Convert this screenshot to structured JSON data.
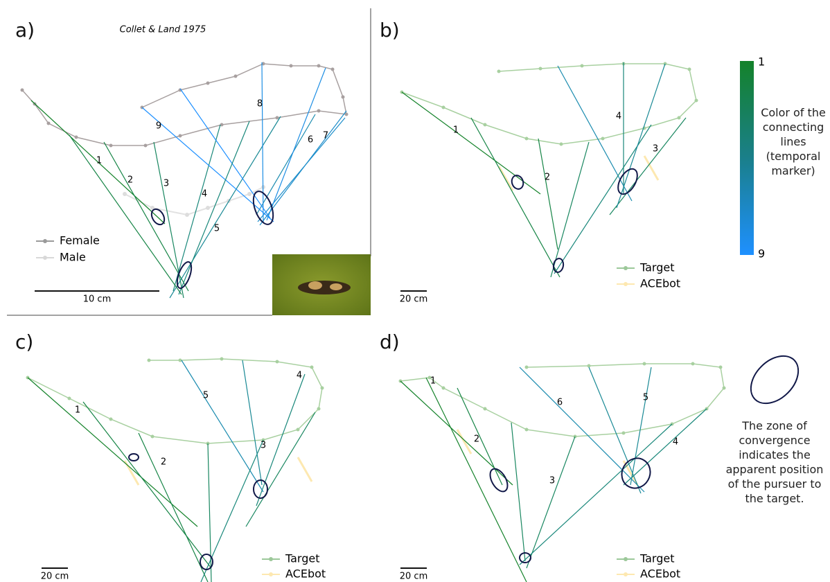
{
  "panels": [
    {
      "label": "a)",
      "source": "Collet & Land 1975",
      "line_labels": [
        "1",
        "2",
        "3",
        "4",
        "5",
        "6",
        "7",
        "8",
        "9"
      ],
      "legend": [
        "Female",
        "Male"
      ],
      "scale": "10 cm"
    },
    {
      "label": "b)",
      "line_labels": [
        "1",
        "2",
        "3",
        "4"
      ],
      "legend": [
        "Target",
        "ACEbot"
      ],
      "scale": "20 cm"
    },
    {
      "label": "c)",
      "line_labels": [
        "1",
        "2",
        "3",
        "4",
        "5"
      ],
      "legend": [
        "Target",
        "ACEbot"
      ],
      "scale": "20 cm"
    },
    {
      "label": "d)",
      "line_labels": [
        "1",
        "2",
        "3",
        "4",
        "5",
        "6"
      ],
      "legend": [
        "Target",
        "ACEbot"
      ],
      "scale": "20 cm"
    }
  ],
  "colorbar": {
    "top": "1",
    "bottom": "9",
    "caption": "Color of the connecting lines (temporal marker)"
  },
  "convergence_note": "The zone of convergence indicates the apparent position of the pursuer to the target."
}
